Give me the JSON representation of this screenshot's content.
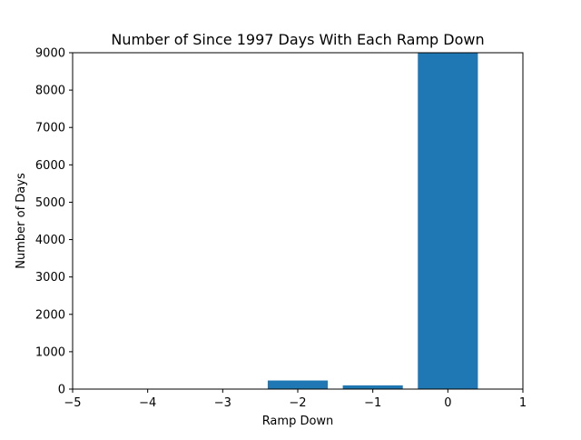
{
  "chart_data": {
    "type": "bar",
    "title": "Number of Since 1997 Days With Each Ramp Down",
    "xlabel": "Ramp Down",
    "ylabel": "Number of Days",
    "x": [
      -2,
      -1,
      0
    ],
    "values": [
      230,
      100,
      9000
    ],
    "bar_width": 0.8,
    "xlim": [
      -5,
      1
    ],
    "ylim": [
      0,
      9000
    ],
    "xticks": [
      -5,
      -4,
      -3,
      -2,
      -1,
      0,
      1
    ],
    "xtick_labels": [
      "−5",
      "−4",
      "−3",
      "−2",
      "−1",
      "0",
      "1"
    ],
    "yticks": [
      0,
      1000,
      2000,
      3000,
      4000,
      5000,
      6000,
      7000,
      8000,
      9000
    ],
    "ytick_labels": [
      "0",
      "1000",
      "2000",
      "3000",
      "4000",
      "5000",
      "6000",
      "7000",
      "8000",
      "9000"
    ],
    "bar_color": "#1f77b4",
    "grid": false,
    "legend": "none"
  }
}
